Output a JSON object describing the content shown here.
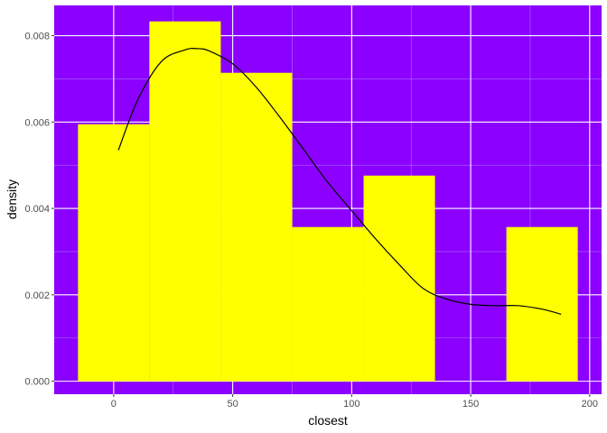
{
  "chart_data": {
    "type": "histogram",
    "xlabel": "closest",
    "ylabel": "density",
    "xlim": [
      -25,
      205
    ],
    "ylim": [
      -0.0003,
      0.0087
    ],
    "x_ticks": [
      0,
      50,
      100,
      150,
      200
    ],
    "y_ticks": [
      0.0,
      0.002,
      0.004,
      0.006,
      0.008
    ],
    "x_tick_labels": [
      "0",
      "50",
      "100",
      "150",
      "200"
    ],
    "y_tick_labels": [
      "0.000",
      "0.002",
      "0.004",
      "0.006",
      "0.008"
    ],
    "bins": [
      {
        "x0": -15,
        "x1": 15,
        "density": 0.00595
      },
      {
        "x0": 15,
        "x1": 45,
        "density": 0.00833
      },
      {
        "x0": 45,
        "x1": 75,
        "density": 0.00714
      },
      {
        "x0": 75,
        "x1": 105,
        "density": 0.00357
      },
      {
        "x0": 105,
        "x1": 135,
        "density": 0.00476
      },
      {
        "x0": 135,
        "x1": 165,
        "density": 0
      },
      {
        "x0": 165,
        "x1": 195,
        "density": 0.00357
      }
    ],
    "density_curve": {
      "x": [
        2,
        10,
        20,
        30,
        35,
        40,
        50,
        60,
        70,
        80,
        90,
        100,
        110,
        120,
        130,
        140,
        150,
        160,
        170,
        180,
        188
      ],
      "y": [
        0.00535,
        0.0065,
        0.0074,
        0.00767,
        0.0077,
        0.00765,
        0.00735,
        0.0068,
        0.0061,
        0.00535,
        0.0046,
        0.00395,
        0.0033,
        0.0027,
        0.00215,
        0.0019,
        0.00178,
        0.00175,
        0.00175,
        0.00167,
        0.00155
      ]
    },
    "grid": true,
    "colors": {
      "panel_background": "#8b00ff",
      "bar_fill": "#ffff00",
      "grid_major": "#ffffff",
      "grid_minor": "#b26bff",
      "curve": "#000000",
      "axis_text": "#4d4d4d",
      "axis_title": "#000000",
      "tick": "#333333"
    }
  }
}
